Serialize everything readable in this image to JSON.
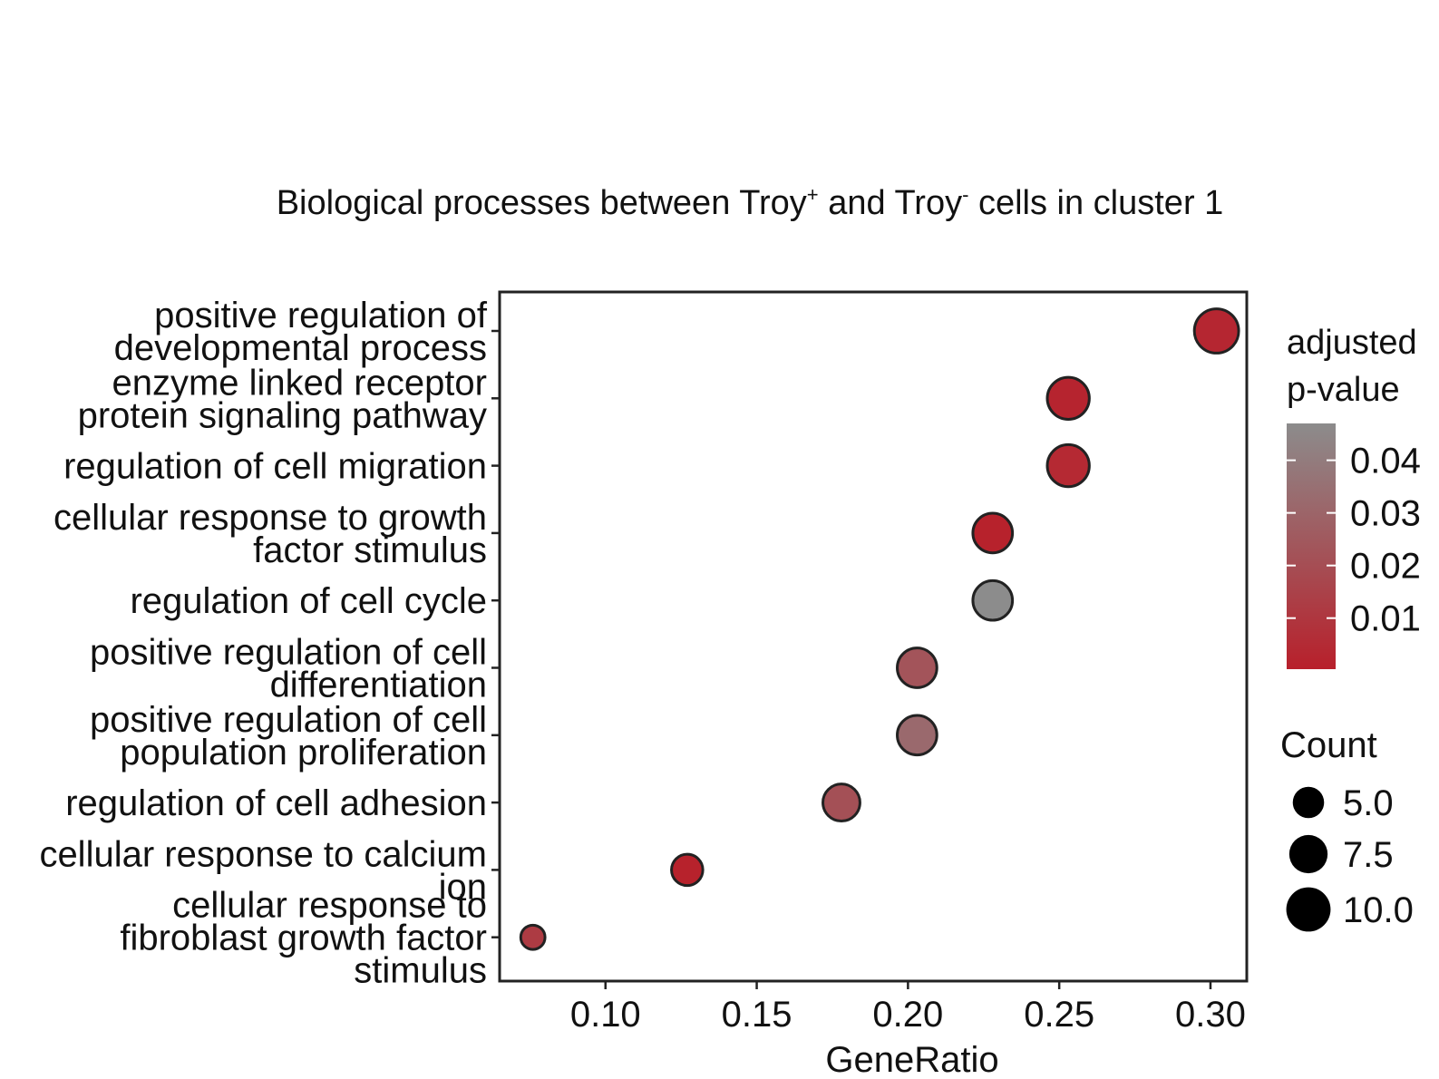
{
  "chart_data": {
    "type": "scatter",
    "title": {
      "part1": "Biological processes between Troy",
      "sup1": "+",
      "part2": " and Troy",
      "sup2": "-",
      "part3": " cells in cluster 1"
    },
    "xlabel": "GeneRatio",
    "ylabel": "",
    "xlim": [
      0.065,
      0.312
    ],
    "xticks": [
      "0.10",
      "0.15",
      "0.20",
      "0.25",
      "0.30"
    ],
    "grid": false,
    "points": [
      {
        "term": [
          "positive regulation of",
          "developmental process"
        ],
        "gene_ratio": 0.302,
        "count": 10,
        "p_adjust": 0.003
      },
      {
        "term": [
          "enzyme linked receptor",
          "protein signaling pathway"
        ],
        "gene_ratio": 0.253,
        "count": 9,
        "p_adjust": 0.002
      },
      {
        "term": [
          "regulation of cell migration"
        ],
        "gene_ratio": 0.253,
        "count": 9,
        "p_adjust": 0.004
      },
      {
        "term": [
          "cellular response to growth",
          "factor stimulus"
        ],
        "gene_ratio": 0.228,
        "count": 8,
        "p_adjust": 0.001
      },
      {
        "term": [
          "regulation of cell cycle"
        ],
        "gene_ratio": 0.228,
        "count": 8,
        "p_adjust": 0.047
      },
      {
        "term": [
          "positive regulation of cell",
          "differentiation"
        ],
        "gene_ratio": 0.203,
        "count": 8,
        "p_adjust": 0.023
      },
      {
        "term": [
          "positive regulation of cell",
          "population proliferation"
        ],
        "gene_ratio": 0.203,
        "count": 8,
        "p_adjust": 0.032
      },
      {
        "term": [
          "regulation of cell adhesion"
        ],
        "gene_ratio": 0.178,
        "count": 7,
        "p_adjust": 0.021
      },
      {
        "term": [
          "cellular response to calcium",
          "ion"
        ],
        "gene_ratio": 0.127,
        "count": 5,
        "p_adjust": 0.001
      },
      {
        "term": [
          "cellular response to",
          "fibroblast growth factor",
          "stimulus"
        ],
        "gene_ratio": 0.076,
        "count": 3,
        "p_adjust": 0.012
      }
    ],
    "color_legend": {
      "title": [
        "adjusted",
        "p-value"
      ],
      "ticks": [
        "0.04",
        "0.03",
        "0.02",
        "0.01"
      ],
      "tick_values": [
        0.04,
        0.03,
        0.02,
        0.01
      ],
      "range": [
        0.0003,
        0.047
      ],
      "low_color": "#b8202b",
      "high_color": "#8c8c8c"
    },
    "size_legend": {
      "title": "Count",
      "labels": [
        "5.0",
        "7.5",
        "10.0"
      ],
      "values": [
        5.0,
        7.5,
        10.0
      ]
    },
    "colors": {
      "axis": "#222222",
      "point_outline": "#222222",
      "legend_dot": "#000000"
    }
  }
}
